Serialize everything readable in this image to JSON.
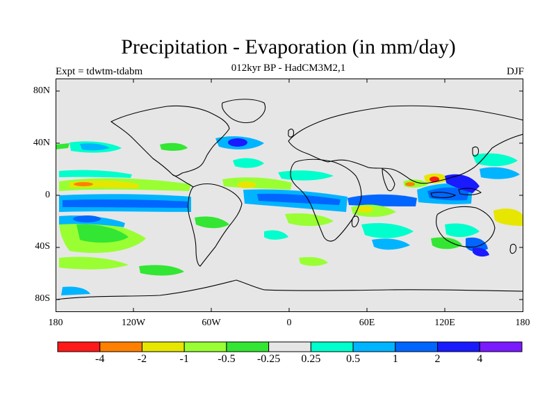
{
  "header": {
    "title": "Precipitation - Evaporation (in mm/day)",
    "subtitle": "012kyr BP - HadCM3M2,1",
    "left_label": "Expt = tdwtm-tdabm",
    "right_label": "DJF"
  },
  "axes": {
    "lat_labels": [
      "80N",
      "40N",
      "0",
      "40S",
      "80S"
    ],
    "lon_labels": [
      "180",
      "120W",
      "60W",
      "0",
      "60E",
      "120E",
      "180"
    ]
  },
  "legend": {
    "colors": [
      "#ff1a1a",
      "#ff8000",
      "#e6e600",
      "#99ff33",
      "#33e633",
      "#e6e6e6",
      "#00ffcc",
      "#00b4ff",
      "#0066ff",
      "#1a1aff",
      "#7a1aff"
    ],
    "labels": [
      "-4",
      "-2",
      "-1",
      "-0.5",
      "-0.25",
      "0.25",
      "0.5",
      "1",
      "2",
      "4"
    ]
  }
}
